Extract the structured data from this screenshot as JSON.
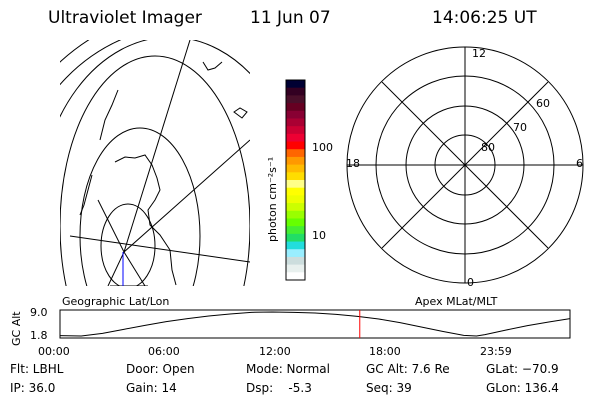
{
  "header": {
    "title": "Ultraviolet Imager",
    "date": "11 Jun 07",
    "time": "14:06:25 UT"
  },
  "geo_map": {
    "label": "Geographic Lat/Lon"
  },
  "colorbar": {
    "unit_label": "photon cm⁻²s⁻¹",
    "tick_labels": [
      "100",
      "10"
    ],
    "colors": [
      "#000033",
      "#330022",
      "#4a0f2a",
      "#660022",
      "#880033",
      "#aa0033",
      "#cc0033",
      "#ee0033",
      "#ff0000",
      "#ff6600",
      "#ff9900",
      "#ffbb00",
      "#ffdd00",
      "#ffff88",
      "#ffff00",
      "#eeff00",
      "#ccff00",
      "#99ff00",
      "#66ff00",
      "#44ee33",
      "#22dd66",
      "#22dddd",
      "#99eeff",
      "#ccdddd",
      "#e8f0ee",
      "#ffffff"
    ]
  },
  "polar_plot": {
    "label": "Apex MLat/MLT",
    "mlt_labels": [
      "12",
      "6",
      "0",
      "18"
    ],
    "lat_labels": [
      "60",
      "70",
      "80"
    ]
  },
  "altitude_plot": {
    "ylabel": "GC Alt",
    "y_ticks": [
      "9.0",
      "1.8"
    ],
    "x_ticks": [
      "00:00",
      "06:00",
      "12:00",
      "18:00",
      "23:59"
    ],
    "current_time_hours": 14.107,
    "series": [
      [
        0,
        1.9
      ],
      [
        1,
        1.8
      ],
      [
        2,
        2.6
      ],
      [
        3,
        3.8
      ],
      [
        4,
        5.0
      ],
      [
        5,
        6.1
      ],
      [
        6,
        7.0
      ],
      [
        7,
        7.8
      ],
      [
        8,
        8.4
      ],
      [
        9,
        8.9
      ],
      [
        10,
        9.0
      ],
      [
        11,
        8.9
      ],
      [
        12,
        8.7
      ],
      [
        13,
        8.3
      ],
      [
        14,
        7.7
      ],
      [
        15,
        6.9
      ],
      [
        16,
        5.8
      ],
      [
        17,
        4.5
      ],
      [
        18,
        3.2
      ],
      [
        19,
        2.0
      ],
      [
        19.6,
        1.8
      ],
      [
        20,
        2.2
      ],
      [
        21,
        3.6
      ],
      [
        22,
        4.9
      ],
      [
        23,
        6.0
      ],
      [
        24,
        7.0
      ]
    ]
  },
  "info": {
    "filter": "Flt: LBHL",
    "ip": "IP: 36.0",
    "door": "Door: Open",
    "gain": "Gain: 14",
    "mode": "Mode: Normal",
    "dsp": "Dsp:    -5.3",
    "gc_alt": "GC Alt: 7.6 Re",
    "seq": "Seq: 39",
    "glat": "GLat: −70.9",
    "glon": "GLon: 136.4"
  }
}
